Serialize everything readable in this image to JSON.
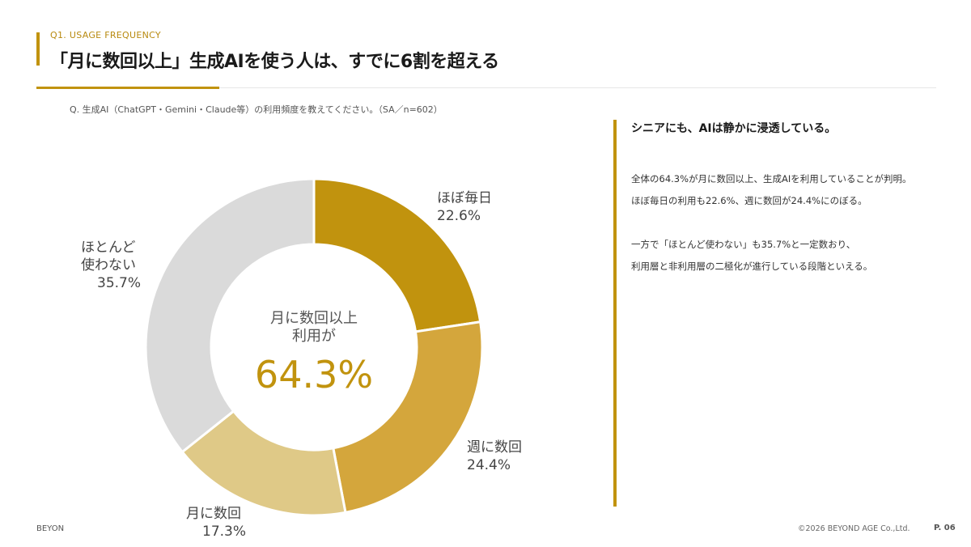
{
  "header": {
    "section_label": "Q1. USAGE FREQUENCY",
    "title": "「月に数回以上」生成AIを使う人は、すでに6割を超える"
  },
  "question": "Q. 生成AI（ChatGPT・Gemini・Claude等）の利用頻度を教えてください。（SA／n=602）",
  "center": {
    "caption_line1": "月に数回以上",
    "caption_line2": "利用が",
    "value": "64.3%"
  },
  "labels": {
    "daily": {
      "name": "ほぼ毎日",
      "pct": "22.6%"
    },
    "weekly": {
      "name": "週に数回",
      "pct": "24.4%"
    },
    "monthly": {
      "name": "月に数回",
      "pct": "17.3%"
    },
    "rarely": {
      "name_line1": "ほとんど",
      "name_line2": "使わない",
      "pct": "35.7%"
    }
  },
  "chart_data": {
    "type": "pie",
    "variant": "donut",
    "slices": [
      {
        "label": "ほぼ毎日",
        "value": 22.6,
        "color": "#c1930e"
      },
      {
        "label": "週に数回",
        "value": 24.4,
        "color": "#d4a63c"
      },
      {
        "label": "月に数回",
        "value": 17.3,
        "color": "#dfc987"
      },
      {
        "label": "ほとんど使わない",
        "value": 35.7,
        "color": "#dadada"
      }
    ],
    "center_annotation": "月に数回以上 利用が 64.3%"
  },
  "sidebar": {
    "heading": "シニアにも、AIは静かに浸透している。",
    "p1": "全体の64.3%が月に数回以上、生成AIを利用していることが判明。",
    "p2": "ほぼ毎日の利用も22.6%、週に数回が24.4%にのぼる。",
    "p3": "一方で「ほとんど使わない」も35.7%と一定数おり、",
    "p4": "利用層と非利用層の二極化が進行している段階といえる。"
  },
  "footer": {
    "left": "BEYON",
    "copyright": "©2026 BEYOND AGE Co.,Ltd.",
    "page": "P. 06"
  },
  "colors": {
    "accent": "#c1930e"
  }
}
